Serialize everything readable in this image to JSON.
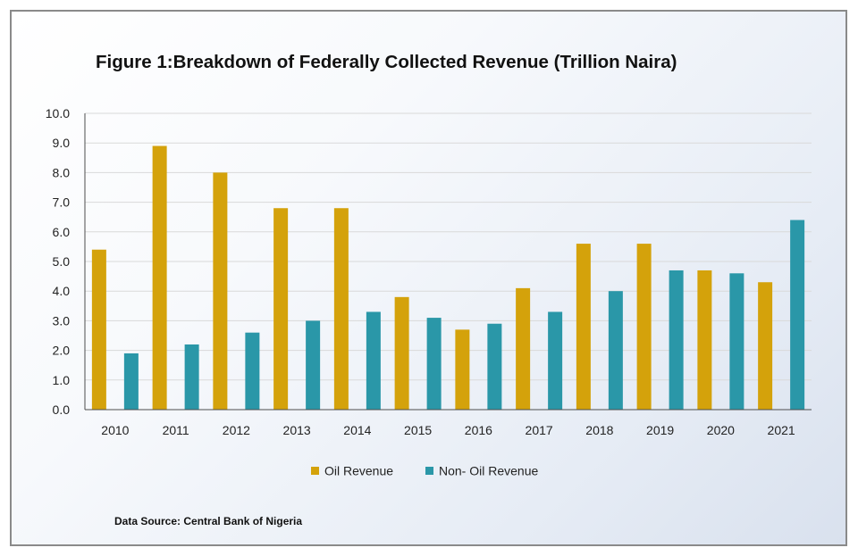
{
  "colors": {
    "oil": "#D4A20B",
    "non_oil": "#2A97A8",
    "grid": "#d9d9d9",
    "axis": "#4d4d4d"
  },
  "chart_data": {
    "type": "bar",
    "title": "Figure 1:Breakdown of Federally Collected Revenue (Trillion Naira)",
    "source": "Data Source: Central Bank of Nigeria",
    "categories": [
      "2010",
      "2011",
      "2012",
      "2013",
      "2014",
      "2015",
      "2016",
      "2017",
      "2018",
      "2019",
      "2020",
      "2021"
    ],
    "series": [
      {
        "name": "Oil Revenue",
        "values": [
          5.4,
          8.9,
          8.0,
          6.8,
          6.8,
          3.8,
          2.7,
          4.1,
          5.6,
          5.6,
          4.7,
          4.3
        ]
      },
      {
        "name": "Non- Oil Revenue",
        "values": [
          1.9,
          2.2,
          2.6,
          3.0,
          3.3,
          3.1,
          2.9,
          3.3,
          4.0,
          4.7,
          4.6,
          6.4
        ]
      }
    ],
    "ylim": [
      0,
      10
    ],
    "yticks": [
      "0.0",
      "1.0",
      "2.0",
      "3.0",
      "4.0",
      "5.0",
      "6.0",
      "7.0",
      "8.0",
      "9.0",
      "10.0"
    ],
    "grid": true,
    "legend": "bottom-center",
    "xlabel": "",
    "ylabel": ""
  }
}
